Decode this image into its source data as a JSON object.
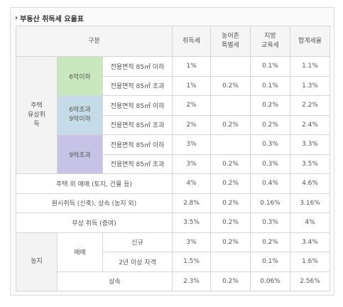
{
  "title": "부동산 취득세 요율표",
  "colors": {
    "green": "#c9e8bd",
    "blue": "#c5dbe8",
    "purple": "#c7c3e6"
  },
  "headers": {
    "category": "구분",
    "acquisition_tax": "취득세",
    "rural_tax": "농어촌\n특별세",
    "education_tax": "지방\n교육세",
    "total_rate": "합계세율"
  },
  "housing": {
    "label": "주택\n유상취\n득",
    "size_le_85": "전용면적 85㎡ 이하",
    "size_gt_85": "전용면적 85㎡ 초과",
    "groups": [
      {
        "price": "6억이하",
        "rows": [
          {
            "acq": "1%",
            "rural": "",
            "edu": "0.1%",
            "total": "1.1%"
          },
          {
            "acq": "1%",
            "rural": "0.2%",
            "edu": "0.1%",
            "total": "1.3%"
          }
        ]
      },
      {
        "price": "6억초과\n9억이하",
        "rows": [
          {
            "acq": "2%",
            "rural": "",
            "edu": "0.2%",
            "total": "2.2%"
          },
          {
            "acq": "2%",
            "rural": "0.2%",
            "edu": "0.2%",
            "total": "2.4%"
          }
        ]
      },
      {
        "price": "9억초과",
        "rows": [
          {
            "acq": "3%",
            "rural": "",
            "edu": "0.3%",
            "total": "3.3%"
          },
          {
            "acq": "3%",
            "rural": "0.2%",
            "edu": "0.3%",
            "total": "3.5%"
          }
        ]
      }
    ]
  },
  "others": [
    {
      "label": "주택 외 매매 (토지, 건물 등)",
      "acq": "4%",
      "rural": "0.2%",
      "edu": "0.4%",
      "total": "4.6%"
    },
    {
      "label": "원시취득 (신축), 상속 (농지 외)",
      "acq": "2.8%",
      "rural": "0.2%",
      "edu": "0.16%",
      "total": "3.16%"
    },
    {
      "label": "무상 취득 (증여)",
      "acq": "3.5%",
      "rural": "0.2%",
      "edu": "0.3%",
      "total": "4%"
    }
  ],
  "farmland": {
    "label": "농지",
    "sale_label": "매매",
    "rows": [
      {
        "label": "신규",
        "acq": "3%",
        "rural": "0.2%",
        "edu": "0.2%",
        "total": "3.4%"
      },
      {
        "label": "2년 이상 자격",
        "acq": "1.5%",
        "rural": "",
        "edu": "0.1%",
        "total": "1.6%"
      },
      {
        "label": "상속",
        "acq": "2.3%",
        "rural": "0.2%",
        "edu": "0.06%",
        "total": "2.56%"
      }
    ]
  }
}
